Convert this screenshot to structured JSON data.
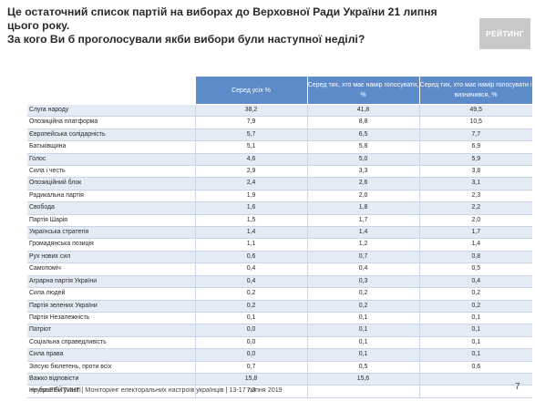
{
  "title": {
    "line1": "Це остаточний список партій на виборах до Верховної Ради України 21 липня цього року.",
    "line2": "За кого Ви б проголосували якби вибори були наступної неділі?"
  },
  "logo": "РЕЙТИНГ",
  "table": {
    "headers": [
      "Серед усіх %",
      "Серед тих, хто має намір голосувати, %",
      "Серед тих, хто має намір голосувати і визначився, %"
    ],
    "rows": [
      {
        "label": "Слуга народу",
        "all": "38,2",
        "intend": "41,8",
        "decided": "49,5"
      },
      {
        "label": "Опозиційна платформа",
        "all": "7,9",
        "intend": "8,8",
        "decided": "10,5"
      },
      {
        "label": "Європейська солідарність",
        "all": "5,7",
        "intend": "6,5",
        "decided": "7,7"
      },
      {
        "label": "Батьківщина",
        "all": "5,1",
        "intend": "5,8",
        "decided": "6,9"
      },
      {
        "label": "Голос",
        "all": "4,6",
        "intend": "5,0",
        "decided": "5,9"
      },
      {
        "label": "Сила і честь",
        "all": "2,9",
        "intend": "3,3",
        "decided": "3,8"
      },
      {
        "label": "Опозиційний блок",
        "all": "2,4",
        "intend": "2,6",
        "decided": "3,1"
      },
      {
        "label": "Радикальна партія",
        "all": "1,9",
        "intend": "2,0",
        "decided": "2,3"
      },
      {
        "label": "Свобода",
        "all": "1,6",
        "intend": "1,8",
        "decided": "2,2"
      },
      {
        "label": "Партія Шарія",
        "all": "1,5",
        "intend": "1,7",
        "decided": "2,0"
      },
      {
        "label": "Українська стратегія",
        "all": "1,4",
        "intend": "1,4",
        "decided": "1,7"
      },
      {
        "label": "Громадянська позиція",
        "all": "1,1",
        "intend": "1,2",
        "decided": "1,4"
      },
      {
        "label": "Рух нових сил",
        "all": "0,6",
        "intend": "0,7",
        "decided": "0,8"
      },
      {
        "label": "Самопоміч",
        "all": "0,4",
        "intend": "0,4",
        "decided": "0,5"
      },
      {
        "label": "Аграрна партія України",
        "all": "0,4",
        "intend": "0,3",
        "decided": "0,4"
      },
      {
        "label": "Сила людей",
        "all": "0,2",
        "intend": "0,2",
        "decided": "0,2"
      },
      {
        "label": "Партія зелених України",
        "all": "0,2",
        "intend": "0,2",
        "decided": "0,2"
      },
      {
        "label": "Партія Незалежність",
        "all": "0,1",
        "intend": "0,1",
        "decided": "0,1"
      },
      {
        "label": "Патріот",
        "all": "0,0",
        "intend": "0,1",
        "decided": "0,1"
      },
      {
        "label": "Соціальна справедливість",
        "all": "0,0",
        "intend": "0,1",
        "decided": "0,1"
      },
      {
        "label": "Сила права",
        "all": "0,0",
        "intend": "0,1",
        "decided": "0,1"
      },
      {
        "label": "Зіпсую бюлетень, проти всіх",
        "all": "0,7",
        "intend": "0,5",
        "decided": "0,6"
      },
      {
        "label": "Важко відповісти",
        "all": "15,8",
        "intend": "15,6",
        "decided": ""
      },
      {
        "label": "Не брав би участі",
        "all": "7,3",
        "intend": "",
        "decided": ""
      }
    ]
  },
  "footer": "група РЕЙТИНГ | Моніторинг електоральних настроїв українців | 13-17 липня 2019",
  "page_number": "7"
}
